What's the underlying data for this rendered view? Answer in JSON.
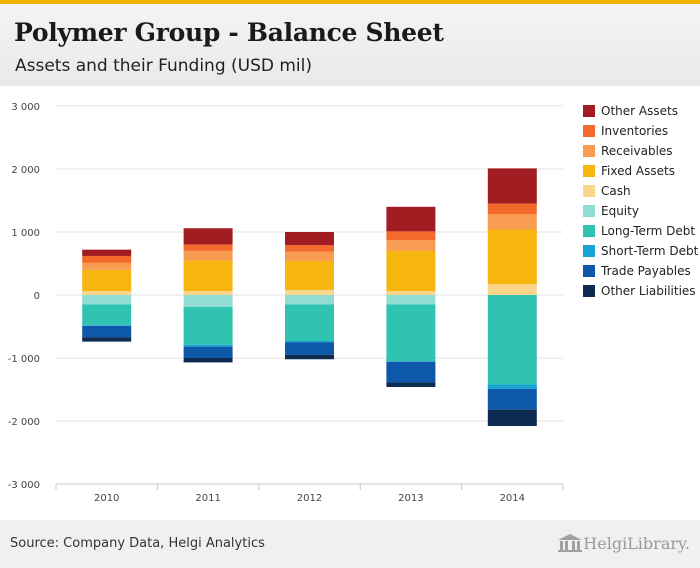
{
  "header": {
    "title": "Polymer Group - Balance Sheet",
    "subtitle": "Assets and their Funding (USD mil)"
  },
  "footer": {
    "source": "Source: Company Data, Helgi Analytics",
    "brand": "HelgiLibrary."
  },
  "colors": {
    "Other Assets": "#a11d22",
    "Inventories": "#f46a2a",
    "Receivables": "#f89c52",
    "Fixed Assets": "#f6b60f",
    "Cash": "#fbd58b",
    "Equity": "#92ddd3",
    "Long-Term Debt": "#31c3b1",
    "Short-Term Debt": "#17a3d4",
    "Trade Payables": "#0d58a8",
    "Other Liabilities": "#0e2b52"
  },
  "chart_data": {
    "type": "bar",
    "stacked": true,
    "title": "Polymer Group - Balance Sheet",
    "subtitle": "Assets and their Funding (USD mil)",
    "categories": [
      "2010",
      "2011",
      "2012",
      "2013",
      "2014"
    ],
    "ylim": [
      -3000,
      3000
    ],
    "yticks": [
      -3000,
      -2000,
      -1000,
      0,
      1000,
      2000,
      3000
    ],
    "ytick_labels": [
      "-3 000",
      "-2 000",
      "-1 000",
      "0",
      "1 000",
      "2 000",
      "3 000"
    ],
    "grid": true,
    "legend_position": "right",
    "legend": [
      "Other Assets",
      "Inventories",
      "Receivables",
      "Fixed Assets",
      "Cash",
      "Equity",
      "Long-Term Debt",
      "Short-Term Debt",
      "Trade Payables",
      "Other Liabilities"
    ],
    "assets": [
      {
        "name": "Cash",
        "values": [
          60,
          60,
          80,
          60,
          170
        ]
      },
      {
        "name": "Fixed Assets",
        "values": [
          340,
          490,
          460,
          640,
          870
        ]
      },
      {
        "name": "Receivables",
        "values": [
          110,
          150,
          150,
          170,
          240
        ]
      },
      {
        "name": "Inventories",
        "values": [
          110,
          100,
          100,
          140,
          170
        ]
      },
      {
        "name": "Other Assets",
        "values": [
          100,
          260,
          210,
          390,
          560
        ]
      }
    ],
    "liabilities": [
      {
        "name": "Equity",
        "values": [
          -150,
          -190,
          -150,
          -150,
          0
        ]
      },
      {
        "name": "Long-Term Debt",
        "values": [
          -330,
          -600,
          -580,
          -900,
          -1420
        ]
      },
      {
        "name": "Short-Term Debt",
        "values": [
          -10,
          -30,
          -20,
          -10,
          -70
        ]
      },
      {
        "name": "Trade Payables",
        "values": [
          -180,
          -180,
          -200,
          -330,
          -330
        ]
      },
      {
        "name": "Other Liabilities",
        "values": [
          -70,
          -70,
          -70,
          -70,
          -260
        ]
      }
    ]
  }
}
